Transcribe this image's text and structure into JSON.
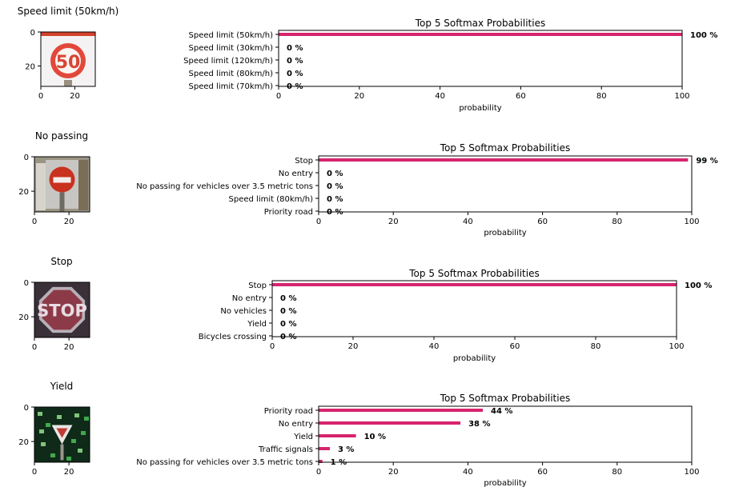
{
  "figure": {
    "accent_color": "#d6246e"
  },
  "chart_data": [
    {
      "type": "image-with-bar",
      "image": {
        "title": "Speed limit (50km/h)",
        "xticks": [
          "0",
          "20"
        ],
        "yticks": [
          "0",
          "20"
        ],
        "icon": "speed-limit-50-sign"
      },
      "bars": {
        "type": "bar",
        "orientation": "horizontal",
        "title": "Top 5 Softmax Probabilities",
        "xlabel": "probability",
        "xlim": [
          0,
          100
        ],
        "xticks": [
          "0",
          "20",
          "40",
          "60",
          "80",
          "100"
        ],
        "categories": [
          "Speed limit (50km/h)",
          "Speed limit (30km/h)",
          "Speed limit (120km/h)",
          "Speed limit (80km/h)",
          "Speed limit (70km/h)"
        ],
        "values": [
          100,
          0,
          0,
          0,
          0
        ],
        "labels": [
          "100 %",
          "0 %",
          "0 %",
          "0 %",
          "0 %"
        ]
      }
    },
    {
      "type": "image-with-bar",
      "image": {
        "title": "No passing",
        "xticks": [
          "0",
          "20"
        ],
        "yticks": [
          "0",
          "20"
        ],
        "icon": "no-entry-sign"
      },
      "bars": {
        "type": "bar",
        "orientation": "horizontal",
        "title": "Top 5 Softmax Probabilities",
        "xlabel": "probability",
        "xlim": [
          0,
          100
        ],
        "xticks": [
          "0",
          "20",
          "40",
          "60",
          "80",
          "100"
        ],
        "categories": [
          "Stop",
          "No entry",
          "No passing for vehicles over 3.5 metric tons",
          "Speed limit (80km/h)",
          "Priority road"
        ],
        "values": [
          99,
          0,
          0,
          0,
          0
        ],
        "labels": [
          "99 %",
          "0 %",
          "0 %",
          "0 %",
          "0 %"
        ]
      }
    },
    {
      "type": "image-with-bar",
      "image": {
        "title": "Stop",
        "xticks": [
          "0",
          "20"
        ],
        "yticks": [
          "0",
          "20"
        ],
        "icon": "stop-sign"
      },
      "bars": {
        "type": "bar",
        "orientation": "horizontal",
        "title": "Top 5 Softmax Probabilities",
        "xlabel": "probability",
        "xlim": [
          0,
          100
        ],
        "xticks": [
          "0",
          "20",
          "40",
          "60",
          "80",
          "100"
        ],
        "categories": [
          "Stop",
          "No entry",
          "No vehicles",
          "Yield",
          "Bicycles crossing"
        ],
        "values": [
          100,
          0,
          0,
          0,
          0
        ],
        "labels": [
          "100 %",
          "0 %",
          "0 %",
          "0 %",
          "0 %"
        ]
      }
    },
    {
      "type": "image-with-bar",
      "image": {
        "title": "Yield",
        "xticks": [
          "0",
          "20"
        ],
        "yticks": [
          "0",
          "20"
        ],
        "icon": "yield-sign"
      },
      "bars": {
        "type": "bar",
        "orientation": "horizontal",
        "title": "Top 5 Softmax Probabilities",
        "xlabel": "probability",
        "xlim": [
          0,
          100
        ],
        "xticks": [
          "0",
          "20",
          "40",
          "60",
          "80",
          "100"
        ],
        "categories": [
          "Priority road",
          "No entry",
          "Yield",
          "Traffic signals",
          "No passing for vehicles over 3.5 metric tons"
        ],
        "values": [
          44,
          38,
          10,
          3,
          1
        ],
        "labels": [
          "44 %",
          "38 %",
          "10 %",
          "3 %",
          "1 %"
        ]
      }
    }
  ]
}
